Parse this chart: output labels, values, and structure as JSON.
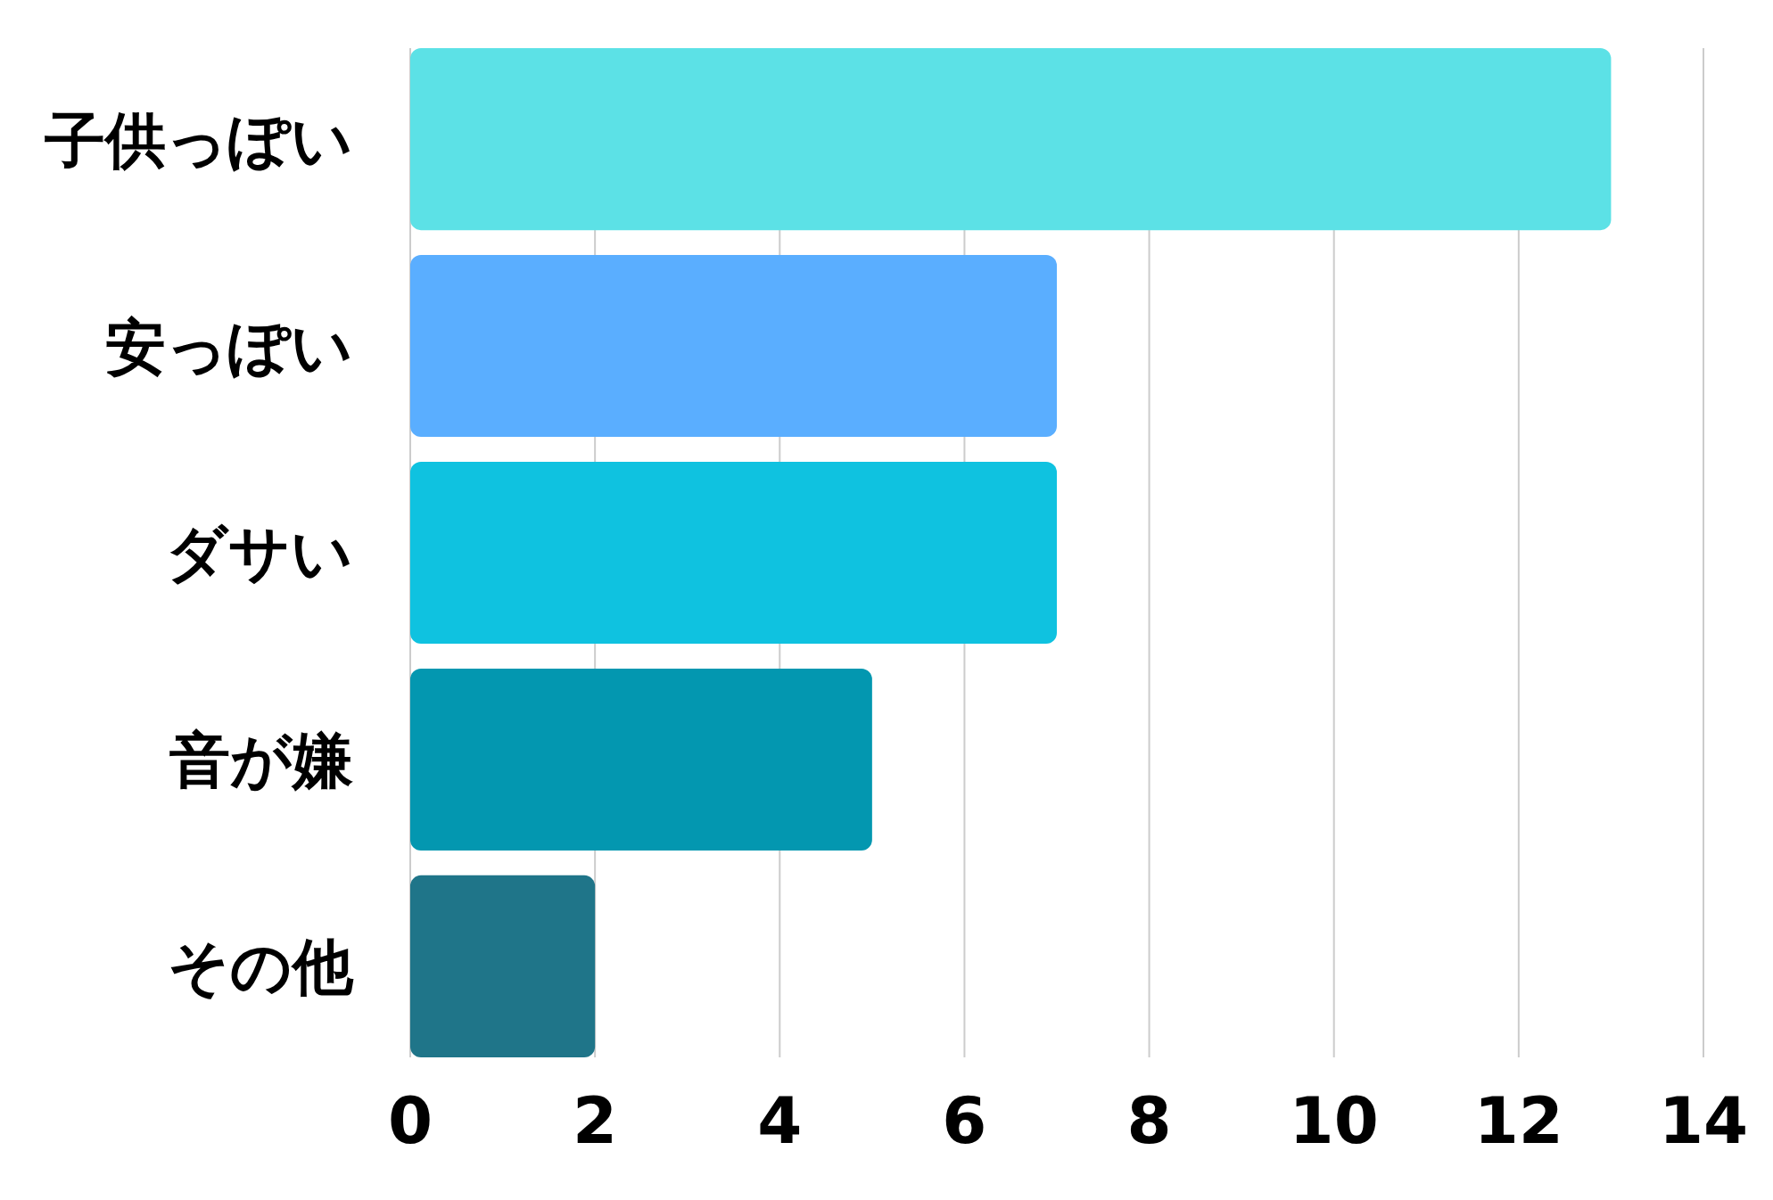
{
  "chart_data": {
    "type": "bar",
    "orientation": "horizontal",
    "categories": [
      "子供っぽい",
      "安っぽい",
      "ダサい",
      "音が嫌",
      "その他"
    ],
    "values": [
      13,
      7,
      7,
      5,
      2
    ],
    "colors": [
      "#5ce1e6",
      "#5aaeff",
      "#0fc2e0",
      "#0397b0",
      "#1f7589"
    ],
    "xlim": [
      0,
      14
    ],
    "xticks": [
      0,
      2,
      4,
      6,
      8,
      10,
      12,
      14
    ],
    "grid": "x"
  }
}
